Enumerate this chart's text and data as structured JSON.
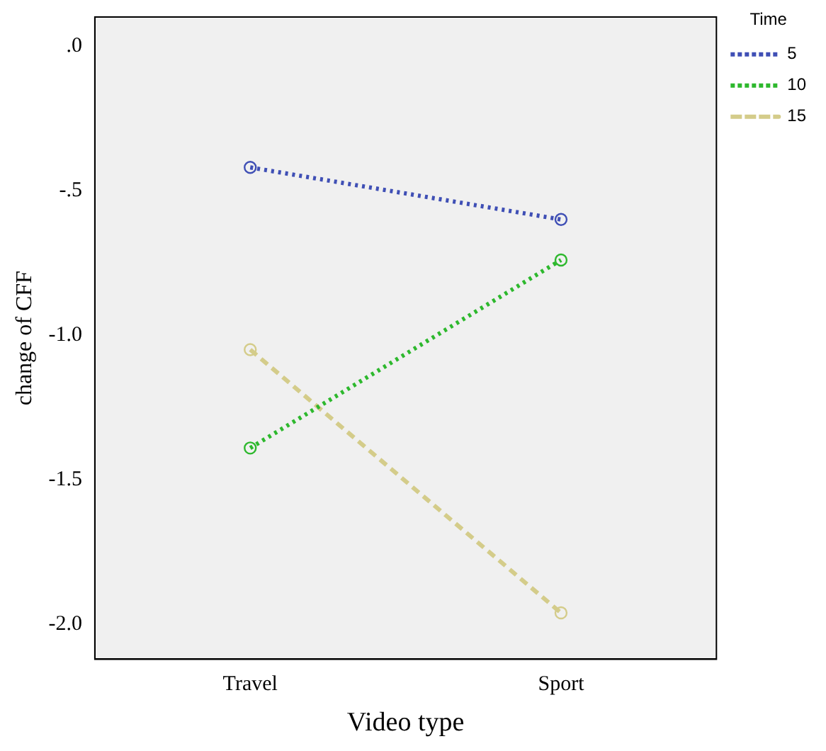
{
  "chart_data": {
    "type": "line",
    "xlabel": "Video type",
    "ylabel": "change of CFF",
    "legend_title": "Time",
    "categories": [
      "Travel",
      "Sport"
    ],
    "series": [
      {
        "name": "5",
        "color": "#3f4fb5",
        "values": [
          -0.42,
          -0.6
        ],
        "line_style": "dotted"
      },
      {
        "name": "10",
        "color": "#2db82d",
        "values": [
          -1.39,
          -0.74
        ],
        "line_style": "dotted"
      },
      {
        "name": "15",
        "color": "#d4cc8a",
        "values": [
          -1.05,
          -1.96
        ],
        "line_style": "dashed"
      }
    ],
    "ylim": [
      -2.12,
      0.1
    ],
    "yticks": [
      {
        "value": 0,
        "label": ".0"
      },
      {
        "value": -0.5,
        "label": "-.5"
      },
      {
        "value": -1,
        "label": "-1.0"
      },
      {
        "value": -1.5,
        "label": "-1.5"
      },
      {
        "value": -2,
        "label": "-2.0"
      }
    ],
    "grid": false,
    "legend": "right",
    "marker": "circle"
  }
}
